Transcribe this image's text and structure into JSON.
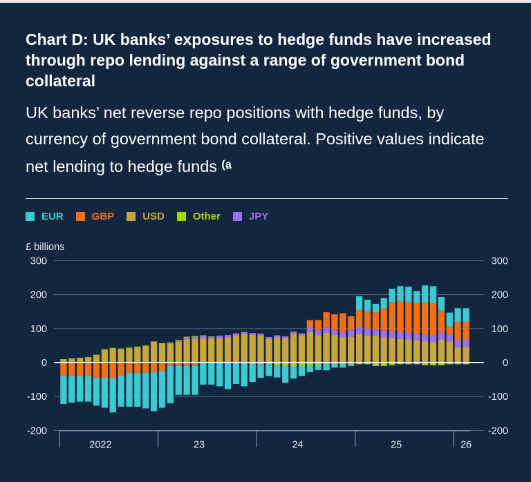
{
  "title": "Chart D: UK banks’ exposures to hedge funds have increased through repo lending against a range of government bond collateral",
  "subtitle": "UK banks’ net reverse repo positions with hedge funds, by currency of government bond collateral. Positive values indicate net lending to hedge funds",
  "footnote_marker": "(a",
  "units_label": "£ billions",
  "colors": {
    "EUR": "#3ccad2",
    "GBP": "#f36f14",
    "USD": "#c9a53d",
    "Other": "#a8d20c",
    "JPY": "#9a72ec"
  },
  "chart_data": {
    "type": "bar",
    "stacked": true,
    "frequency": "monthly",
    "period_start": "2022-01",
    "period_end": "2026-02",
    "ylim": [
      -200,
      300
    ],
    "yticks": [
      -200,
      -100,
      0,
      100,
      200,
      300
    ],
    "ytick_labels": [
      "-200",
      "-100",
      "0",
      "100",
      "200",
      "300"
    ],
    "year_labels": [
      "2022",
      "23",
      "24",
      "25",
      "26"
    ],
    "year_label_month_index": [
      5,
      17,
      29,
      41,
      49
    ],
    "year_boundary_month_index": [
      0,
      12,
      24,
      36,
      48
    ],
    "legend_position": "top-left",
    "grid": true,
    "series": [
      {
        "name": "EUR",
        "values": [
          -82,
          -78,
          -75,
          -75,
          -82,
          -88,
          -102,
          -90,
          -100,
          -100,
          -105,
          -115,
          -108,
          -110,
          -85,
          -85,
          -85,
          -65,
          -65,
          -70,
          -75,
          -60,
          -65,
          -52,
          -40,
          -35,
          -36,
          -50,
          -35,
          -30,
          -20,
          -15,
          -18,
          -10,
          -10,
          -5,
          40,
          35,
          25,
          30,
          40,
          45,
          45,
          35,
          50,
          50,
          40,
          40,
          40,
          40
        ]
      },
      {
        "name": "GBP",
        "values": [
          -40,
          -40,
          -40,
          -40,
          -45,
          -45,
          -45,
          -40,
          -30,
          -30,
          -30,
          -28,
          -25,
          -10,
          -10,
          -10,
          -10,
          0,
          0,
          0,
          0,
          0,
          0,
          0,
          0,
          0,
          0,
          0,
          0,
          0,
          20,
          30,
          45,
          45,
          55,
          40,
          50,
          50,
          50,
          65,
          85,
          90,
          90,
          90,
          95,
          95,
          65,
          25,
          55,
          55
        ]
      },
      {
        "name": "USD",
        "values": [
          8,
          10,
          12,
          14,
          20,
          35,
          40,
          38,
          42,
          45,
          48,
          60,
          55,
          55,
          60,
          68,
          70,
          72,
          70,
          72,
          75,
          80,
          85,
          82,
          80,
          70,
          75,
          72,
          85,
          80,
          90,
          80,
          88,
          82,
          75,
          76,
          85,
          80,
          78,
          75,
          72,
          70,
          68,
          65,
          62,
          60,
          68,
          62,
          45,
          45
        ]
      },
      {
        "name": "Other",
        "values": [
          2,
          2,
          2,
          2,
          3,
          4,
          3,
          3,
          2,
          2,
          2,
          2,
          2,
          2,
          2,
          2,
          2,
          2,
          1,
          1,
          -3,
          -3,
          -5,
          -5,
          -5,
          -5,
          -8,
          -10,
          -12,
          -10,
          -8,
          -7,
          -5,
          -5,
          -5,
          -5,
          -5,
          -5,
          -10,
          -10,
          -8,
          -5,
          -5,
          -5,
          -8,
          -8,
          -8,
          -5,
          -5,
          -5
        ]
      },
      {
        "name": "JPY",
        "values": [
          0,
          0,
          0,
          0,
          0,
          0,
          0,
          0,
          0,
          0,
          0,
          0,
          0,
          2,
          4,
          6,
          6,
          6,
          6,
          6,
          6,
          6,
          5,
          5,
          5,
          5,
          5,
          5,
          6,
          6,
          15,
          15,
          15,
          15,
          15,
          20,
          20,
          20,
          20,
          20,
          20,
          20,
          20,
          20,
          20,
          20,
          20,
          20,
          20,
          20
        ]
      }
    ]
  }
}
